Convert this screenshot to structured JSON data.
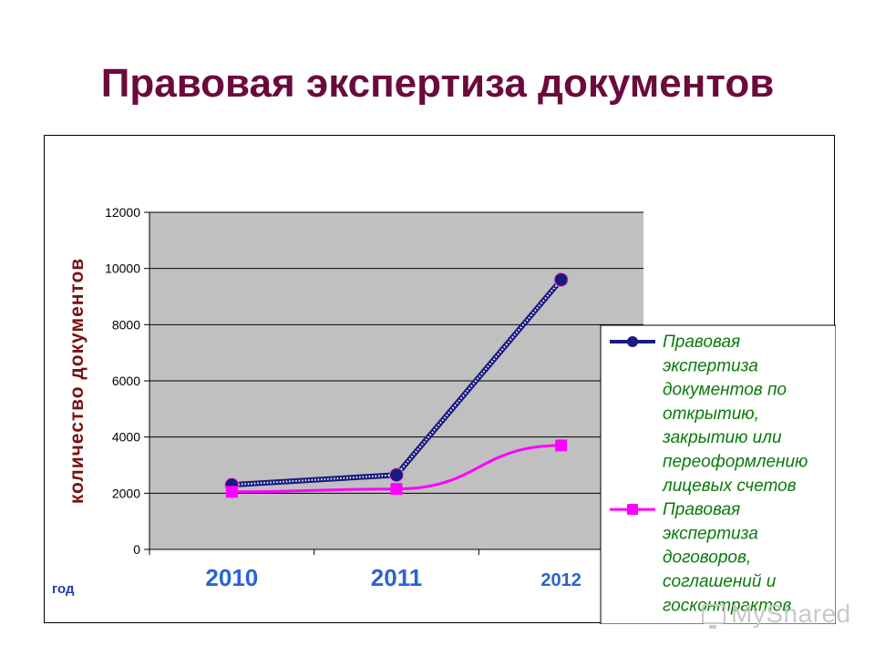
{
  "page": {
    "title": "Правовая экспертиза документов"
  },
  "chart_data": {
    "type": "line",
    "title": "",
    "xlabel": "год",
    "ylabel": "количество документов",
    "categories": [
      "2010",
      "2011",
      "2012"
    ],
    "ylim": [
      0,
      12000
    ],
    "yticks": [
      0,
      2000,
      4000,
      6000,
      8000,
      10000,
      12000
    ],
    "grid": true,
    "legend": "right",
    "colors": {
      "plot_background": "#c0c0c0",
      "category_labels": "#2a63d4",
      "ylabel": "#7a1212"
    },
    "series": [
      {
        "name": "Правовая экспертиза документов по открытию, закрытию или переоформлению лицевых счетов",
        "values": [
          2300,
          2650,
          9600
        ],
        "color": "#1a1a80",
        "marker": "circle"
      },
      {
        "name": "Правовая экспертиза договоров, соглашений и госконтрактов",
        "values": [
          2050,
          2150,
          3700
        ],
        "color": "#ff00ff",
        "marker": "square"
      }
    ]
  },
  "watermark": {
    "text": "MyShared",
    "icon": "presentation-board-icon"
  }
}
